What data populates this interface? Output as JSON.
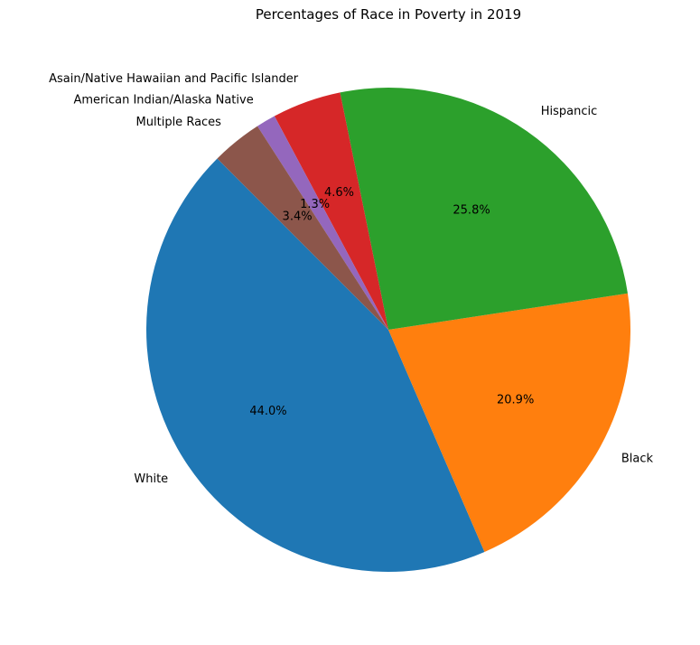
{
  "chart_data": {
    "type": "pie",
    "title": "Percentages of Race in Poverty in 2019",
    "slices": [
      {
        "label": "White",
        "value": 44.0,
        "pct_label": "44.0%",
        "color": "#1f77b4"
      },
      {
        "label": "Black",
        "value": 20.9,
        "pct_label": "20.9%",
        "color": "#ff7f0e"
      },
      {
        "label": "Hispancic",
        "value": 25.8,
        "pct_label": "25.8%",
        "color": "#2ca02c"
      },
      {
        "label": "Asain/Native Hawaiian and Pacific Islander",
        "value": 4.6,
        "pct_label": "4.6%",
        "color": "#d62728"
      },
      {
        "label": "American Indian/Alaska Native",
        "value": 1.3,
        "pct_label": "1.3%",
        "color": "#9467bd"
      },
      {
        "label": "Multiple Races",
        "value": 3.4,
        "pct_label": "3.4%",
        "color": "#8c564b"
      }
    ],
    "start_angle_deg": 135,
    "direction": "counterclockwise"
  }
}
